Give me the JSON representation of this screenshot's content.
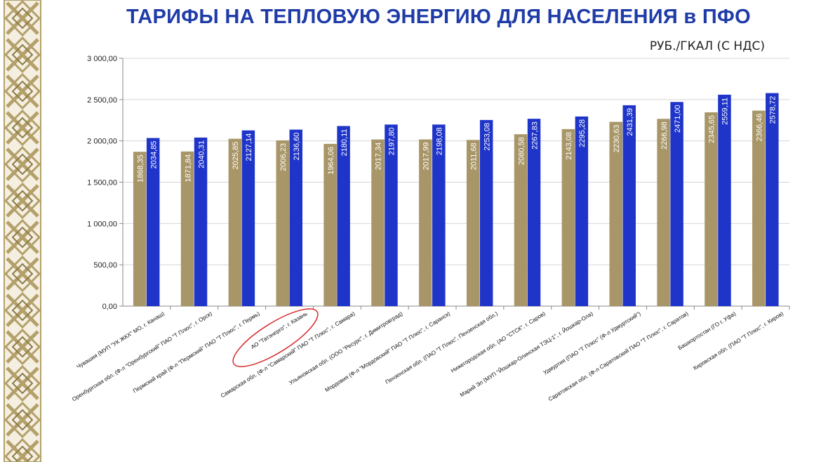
{
  "header": {
    "title": "ТАРИФЫ НА ТЕПЛОВУЮ ЭНЕРГИЮ ДЛЯ НАСЕЛЕНИЯ в ПФО",
    "units": "РУБ./ГКАЛ (С НДС)"
  },
  "colors": {
    "title": "#1f3ba8",
    "series_prev": "#a89668",
    "series_new": "#1f35c9",
    "ornament": "#b3a06a",
    "highlight_ellipse": "#d62b2b"
  },
  "highlight": {
    "category_index": 3,
    "shape": "ellipse"
  },
  "chart_data": {
    "type": "bar",
    "ylim": [
      0,
      3000
    ],
    "yticks": [
      "0,00",
      "500,00",
      "1 000,00",
      "1 500,00",
      "2 000,00",
      "2 500,00",
      "3 000,00"
    ],
    "grid": true,
    "categories": [
      "Чувашия (МУП \"УК ЖКХ\" МО, г. Канаш)",
      "Оренбургская обл. (Ф-л \"Оренбургский\" ПАО \"Т Плюс\", г. Орск)",
      "Пермский край (Ф-л \"Пермский\" ПАО \"Т Плюс\", г. Пермь)",
      "АО \"Татэнерго\", г. Казань",
      "Самарская обл. (Ф-л \"Самарский\" ПАО \"Т Плюс\", г. Самара)",
      "Ульяновская обл. (ООО \"Ресурс\", г. Димитровград)",
      "Мордовия (Ф-л \"Мордовский\" ПАО \"Т Плюс\", г. Саранск)",
      "Пензенская обл. (ПАО \"Т Плюс\", Пензенская обл.)",
      "Нижегородская обл. (АО \"СТСК\", г. Саров)",
      "Марий Эл (МУП \"Йошкар-Олинская ТЭЦ-1\", г. Йошкар-Ола)",
      "Удмуртия (ПАО \"Т Плюс\" (Ф-л Удмуртский\")",
      "Саратовская обл. (Ф-л Саратовский ПАО \"Т Плюс\", г. Саратов)",
      "Башкортостан (ГО г. Уфа)",
      "Кировская обл. (ПАО \"Т Плюс\", г. Киров)"
    ],
    "series": [
      {
        "values": [
          1868.35,
          1871.84,
          2025.85,
          2006.23,
          1964.06,
          2017.34,
          2017.99,
          2011.68,
          2080.58,
          2143.08,
          2230.63,
          2266.98,
          2345.65,
          2366.46
        ],
        "labels": [
          "1868,35",
          "1871,84",
          "2025,85",
          "2006,23",
          "1964,06",
          "2017,34",
          "2017,99",
          "2011,68",
          "2080,58",
          "2143,08",
          "2230,63",
          "2266,98",
          "2345,65",
          "2366,46"
        ]
      },
      {
        "values": [
          2034.85,
          2040.31,
          2127.14,
          2136.6,
          2180.11,
          2197.8,
          2198.08,
          2253.08,
          2267.83,
          2295.28,
          2431.39,
          2471.0,
          2559.11,
          2578.72
        ],
        "labels": [
          "2034,85",
          "2040,31",
          "2127,14",
          "2136,60",
          "2180,11",
          "2197,80",
          "2198,08",
          "2253,08",
          "2267,83",
          "2295,28",
          "2431,39",
          "2471,00",
          "2559,11",
          "2578,72"
        ]
      }
    ]
  }
}
